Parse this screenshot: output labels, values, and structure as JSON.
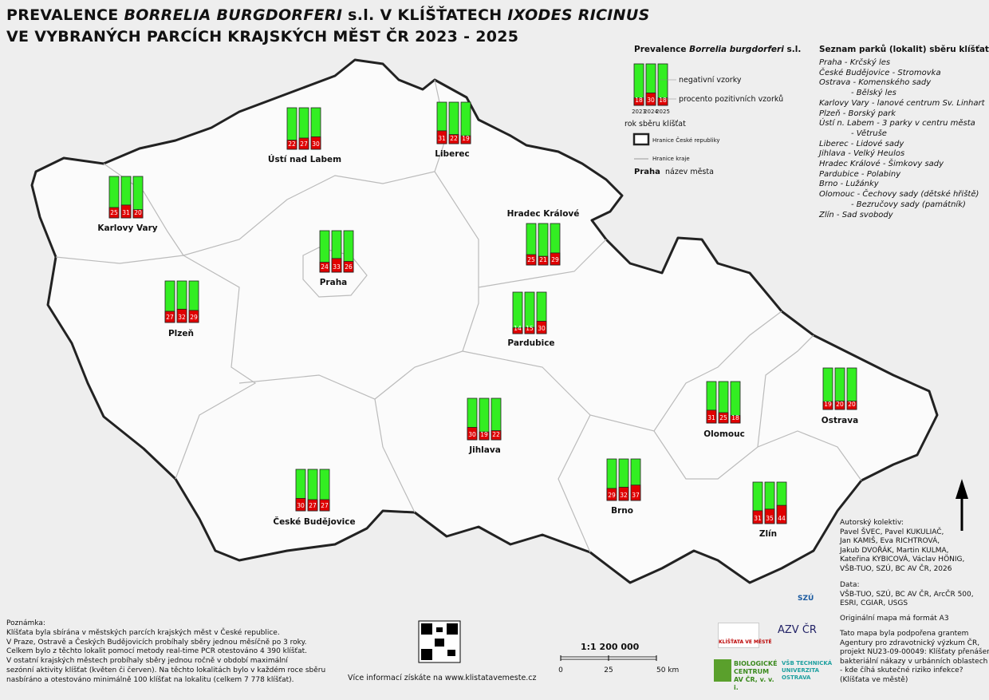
{
  "title": {
    "line1": [
      "PREVALENCE ",
      "BORRELIA BURGDORFERI",
      " s.l. V KLÍŠŤATECH ",
      "IXODES RICINUS"
    ],
    "line2": "VE VYBRANÝCH PARCÍCH KRAJSKÝCH MĚST ČR 2023 - 2025"
  },
  "legend": {
    "title": [
      "Prevalence ",
      "Borrelia burgdorferi",
      " s.l."
    ],
    "years": [
      2023,
      2024,
      2025
    ],
    "sample_values": [
      18,
      30,
      18
    ],
    "negative": "negativní vzorky",
    "positive": "procento pozitivních vzorků",
    "year_label": "rok sběru klíšťat",
    "country_border": "Hranice České republiky",
    "region_border": "Hranice kraje",
    "city_sample": "Praha",
    "city_label": "název města"
  },
  "cities": [
    {
      "name": "Ústí nad Labem",
      "values": [
        22,
        27,
        30
      ]
    },
    {
      "name": "Liberec",
      "values": [
        31,
        22,
        19
      ]
    },
    {
      "name": "Karlovy Vary",
      "values": [
        25,
        31,
        20
      ]
    },
    {
      "name": "Praha",
      "values": [
        24,
        33,
        26
      ]
    },
    {
      "name": "Hradec Králové",
      "values": [
        25,
        21,
        29
      ]
    },
    {
      "name": "Plzeň",
      "values": [
        27,
        32,
        29
      ]
    },
    {
      "name": "Pardubice",
      "values": [
        14,
        15,
        30
      ]
    },
    {
      "name": "Olomouc",
      "values": [
        31,
        25,
        18
      ]
    },
    {
      "name": "Ostrava",
      "values": [
        19,
        20,
        20
      ]
    },
    {
      "name": "Jihlava",
      "values": [
        30,
        19,
        22
      ]
    },
    {
      "name": "České Budějovice",
      "values": [
        30,
        27,
        27
      ]
    },
    {
      "name": "Brno",
      "values": [
        29,
        32,
        37
      ]
    },
    {
      "name": "Zlín",
      "values": [
        31,
        35,
        44
      ]
    }
  ],
  "parks": {
    "title": "Seznam parků (lokalit) sběru klíšťat",
    "items": [
      "Praha - Krčský les",
      "České Budějovice - Stromovka",
      "Ostrava - Komenského sady",
      "- Bělský les",
      "Karlovy Vary - lanové centrum Sv. Linhart",
      "Plzeň - Borský park",
      "Ústí n. Labem - 3 parky v centru města",
      "- Větruše",
      "Liberec - Lidové sady",
      "Jihlava - Velký Heulos",
      "Hradec Králové - Šimkovy sady",
      "Pardubice - Polabiny",
      "Brno - Lužánky",
      "Olomouc - Čechovy sady (dětské hřiště)",
      "- Bezručovy sady (památník)",
      "Zlín - Sad svobody"
    ]
  },
  "note": [
    "Poznámka:",
    "Klíšťata byla sbírána v městských parcích krajských měst v České republice.",
    "V Praze, Ostravě a Českých Budějovicích probíhaly sběry jednou měsíčně po 3 roky.",
    "Celkem bylo z těchto lokalit pomocí metody real-time PCR otestováno 4 390 klíšťat.",
    "V ostatní krajských městech probíhaly sběry jednou ročně v období maximální",
    "sezónní aktivity klíšťat (květen či červen). Na těchto lokalitách bylo v každém roce sběru",
    "nasbíráno a otestováno minimálně 100 klíšťat na lokalitu (celkem 7 778 klíšťat)."
  ],
  "authors": [
    "Autorský kolektiv:",
    "Pavel ŠVEC, Pavel KUKULIAČ,",
    "Jan KAMIŠ, Eva RICHTROVÁ,",
    "Jakub DVOŘÁK, Martin KULMA,",
    "Kateřina KYBICOVÁ, Václav HÖNIG,",
    "VŠB-TUO, SZÚ, BC AV ČR, 2026"
  ],
  "sources": [
    "Data:",
    "VŠB-TUO, SZÚ, BC AV ČR, ArcČR 500,",
    "ESRI, CGIAR, USGS"
  ],
  "original_format": "Originální mapa má formát A3",
  "grant": [
    "Tato mapa byla podpořena grantem",
    "Agentury pro zdravotnický výzkum ČR,",
    "projekt NU23-09-00049: Klíšťaty přenášené",
    "bakteriální nákazy v urbánních oblastech",
    " - kde číhá skutečné riziko infekce?",
    "(Klíšťata ve městě)"
  ],
  "website": "Více informací získáte na www.klistatavemeste.cz",
  "scale": {
    "ratio": "1:1 200 000",
    "ticks": [
      0,
      25,
      {
        "value": 50,
        "label": "50 km"
      }
    ]
  },
  "logos": [
    "KLÍŠŤATA VE MĚSTĚ",
    "AZV ČR",
    "SZÚ",
    "BIOLOGICKÉ CENTRUM AV ČR, v. v. i.",
    "VŠB TECHNICKÁ UNIVERZITA OSTRAVA"
  ]
}
